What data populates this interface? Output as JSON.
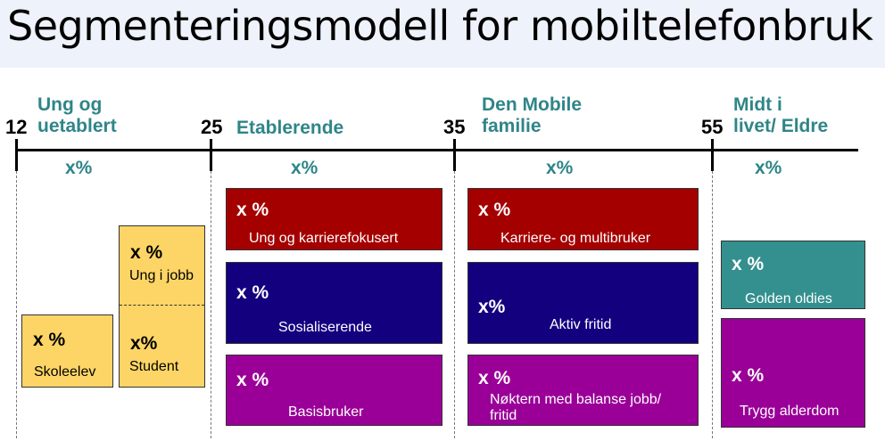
{
  "title": "Segmenteringsmodell for mobiltelefonbruk",
  "ages": [
    "12",
    "25",
    "35",
    "55"
  ],
  "segments": [
    {
      "label_line1": "Ung og",
      "label_line2": "uetablert",
      "share": "x%"
    },
    {
      "label_line1": "Etablerende",
      "label_line2": "",
      "share": "x%"
    },
    {
      "label_line1": "Den Mobile",
      "label_line2": "familie",
      "share": "x%"
    },
    {
      "label_line1": "Midt i",
      "label_line2": "livet/ Eldre",
      "share": "x%"
    }
  ],
  "boxes": {
    "skoleelev": {
      "value": "x %",
      "name": "Skoleelev"
    },
    "ung_i_jobb": {
      "value": "x %",
      "name": "Ung i jobb"
    },
    "student": {
      "value": "x%",
      "name": "Student"
    },
    "ung_karriere": {
      "value": "x %",
      "name": "Ung og karrierefokusert"
    },
    "sosialiserende": {
      "value": "x %",
      "name": "Sosialiserende"
    },
    "basisbruker": {
      "value": "x %",
      "name": "Basisbruker"
    },
    "karriere_multi": {
      "value": "x %",
      "name": "Karriere- og multibruker"
    },
    "aktiv_fritid": {
      "value": "x%",
      "name": "Aktiv fritid"
    },
    "noktern": {
      "value": "x %",
      "name_line1": "Nøktern med balanse jobb/",
      "name_line2": "fritid"
    },
    "golden_oldies": {
      "value": "x %",
      "name": "Golden oldies"
    },
    "trygg_alderdom": {
      "value": "x %",
      "name": "Trygg alderdom"
    }
  },
  "colors": {
    "segment_label": "#2f8588",
    "yellow": "#fdd566",
    "red": "#a50000",
    "blue": "#12007f",
    "purple": "#9a0098",
    "teal": "#33908f"
  }
}
